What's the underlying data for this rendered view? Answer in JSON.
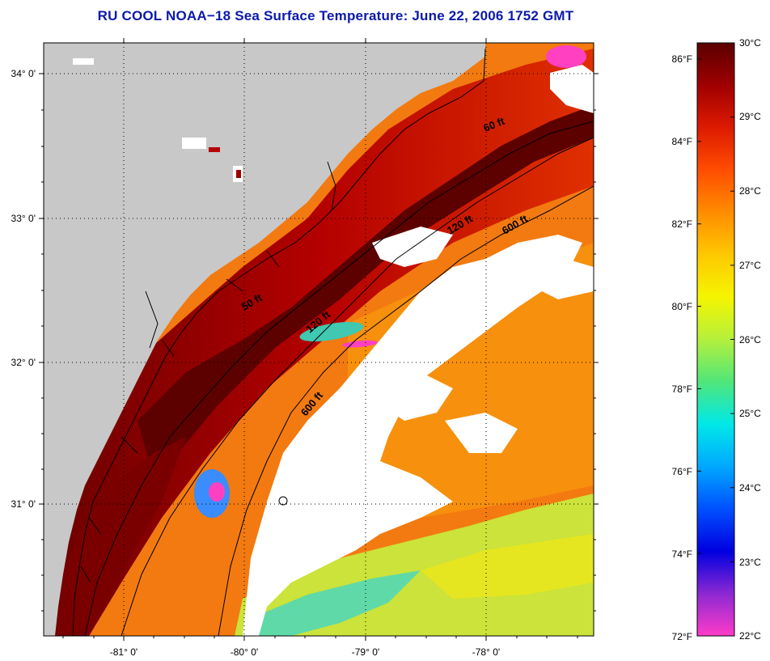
{
  "title": "RU COOL  NOAA−18  Sea Surface Temperature:  June 22, 2006 1752 GMT",
  "map": {
    "latitude_labels": [
      "34° 0'",
      "33° 0'",
      "32° 0'",
      "31° 0'"
    ],
    "longitude_labels": [
      "-81° 0'",
      "-80° 0'",
      "-79° 0'",
      "-78° 0'"
    ],
    "contour_labels": [
      "60 ft",
      "120 ft",
      "600 ft",
      "50 ft",
      "120 ft",
      "600 ft"
    ],
    "land_color": "#c8c8c8",
    "cloud_color": "#ffffff",
    "grid": "dotted"
  },
  "colorbar": {
    "fahrenheit_labels": [
      "86°F",
      "84°F",
      "82°F",
      "80°F",
      "78°F",
      "76°F",
      "74°F",
      "72°F"
    ],
    "celsius_labels": [
      "30°C",
      "29°C",
      "28°C",
      "27°C",
      "26°C",
      "25°C",
      "24°C",
      "23°C",
      "22°C"
    ],
    "colors": [
      "#5a0000",
      "#a00000",
      "#dd1a00",
      "#ff4d00",
      "#ff8c00",
      "#ffc800",
      "#f5f500",
      "#b4f03c",
      "#50e67a",
      "#00e8e8",
      "#00a8ff",
      "#0050ff",
      "#0000e0",
      "#8c28d2",
      "#ff3cc8"
    ]
  }
}
